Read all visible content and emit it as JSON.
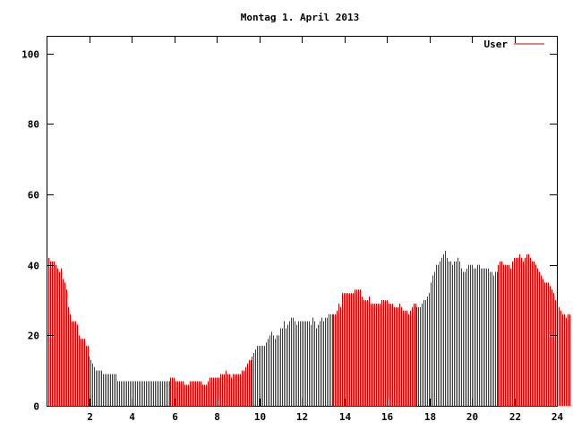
{
  "chart_data": {
    "type": "bar",
    "title": "Montag 1. April 2013",
    "xlabel": "",
    "ylabel": "",
    "xlim": [
      0,
      24
    ],
    "ylim": [
      0,
      105
    ],
    "xticks": [
      2,
      4,
      6,
      8,
      10,
      12,
      14,
      16,
      18,
      20,
      22,
      24
    ],
    "yticks": [
      0,
      20,
      40,
      60,
      80,
      100
    ],
    "grid": false,
    "legend_position": "top-right",
    "series": [
      {
        "name": "User",
        "color": "#cc0000",
        "x_step_hours": 0.0833,
        "values": [
          44,
          42,
          41,
          41,
          41,
          40,
          39,
          38,
          39,
          36,
          35,
          33,
          28,
          26,
          24,
          24,
          24,
          23,
          20,
          19,
          19,
          19,
          17,
          17,
          14,
          13,
          12,
          11,
          10,
          10,
          10,
          10,
          9,
          9,
          9,
          9,
          9,
          9,
          9,
          9,
          7,
          7,
          7,
          7,
          7,
          7,
          7,
          7,
          7,
          7,
          7,
          7,
          7,
          7,
          7,
          7,
          7,
          7,
          7,
          7,
          7,
          7,
          7,
          7,
          7,
          7,
          7,
          7,
          7,
          7,
          8,
          8,
          8,
          7,
          7,
          7,
          7,
          7,
          6,
          6,
          6,
          7,
          7,
          7,
          7,
          7,
          7,
          7,
          6,
          6,
          6,
          7,
          8,
          8,
          8,
          8,
          8,
          8,
          9,
          9,
          9,
          10,
          9,
          9,
          8,
          9,
          9,
          9,
          9,
          9,
          10,
          10,
          11,
          12,
          13,
          13,
          14,
          15,
          16,
          17,
          17,
          17,
          17,
          17,
          18,
          19,
          20,
          21,
          20,
          19,
          20,
          20,
          22,
          22,
          24,
          22,
          23,
          24,
          25,
          25,
          24,
          23,
          24,
          24,
          24,
          24,
          24,
          24,
          24,
          23,
          25,
          24,
          22,
          23,
          24,
          25,
          24,
          25,
          25,
          26,
          26,
          26,
          26,
          26,
          27,
          29,
          28,
          32,
          32,
          32,
          32,
          32,
          32,
          32,
          33,
          33,
          33,
          33,
          31,
          30,
          30,
          30,
          31,
          29,
          29,
          29,
          29,
          29,
          29,
          30,
          30,
          30,
          30,
          29,
          29,
          29,
          28,
          28,
          28,
          29,
          28,
          27,
          27,
          27,
          26,
          27,
          28,
          29,
          29,
          28,
          28,
          28,
          29,
          30,
          30,
          31,
          32,
          35,
          37,
          38,
          40,
          40,
          41,
          42,
          43,
          44,
          42,
          41,
          41,
          40,
          41,
          41,
          42,
          41,
          39,
          38,
          38,
          39,
          40,
          40,
          40,
          39,
          39,
          40,
          40,
          39,
          39,
          39,
          39,
          39,
          38,
          38,
          37,
          38,
          38,
          40,
          41,
          41,
          40,
          40,
          40,
          40,
          39,
          41,
          42,
          42,
          42,
          43,
          42,
          41,
          42,
          43,
          43,
          42,
          41,
          41,
          40,
          39,
          38,
          37,
          36,
          35,
          35,
          35,
          34,
          33,
          32,
          30,
          29,
          28,
          27,
          26,
          26,
          25,
          26,
          26
        ]
      }
    ]
  }
}
